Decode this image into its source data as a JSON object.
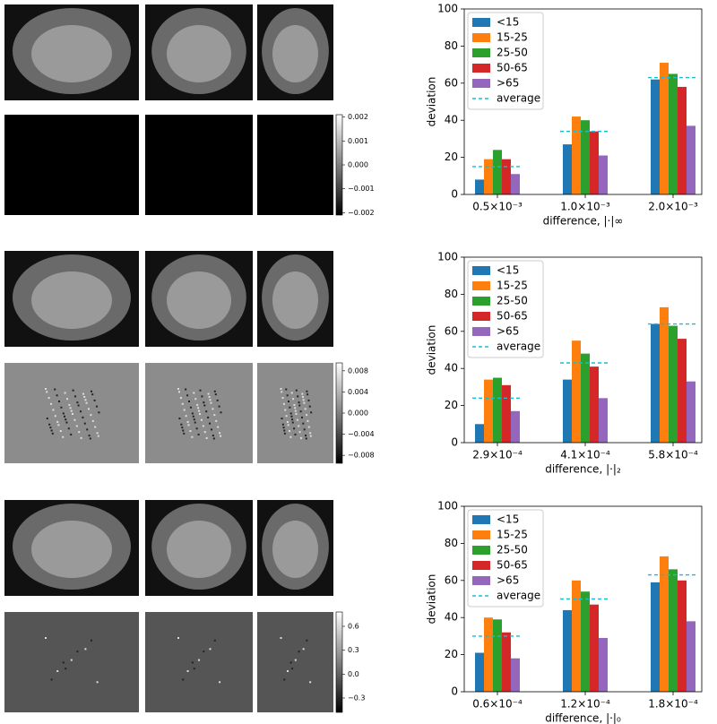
{
  "chart_data": [
    {
      "type": "bar",
      "ylabel": "deviation",
      "xlabel": "difference, |·|∞",
      "categories": [
        "0.5×10⁻³",
        "1.0×10⁻³",
        "2.0×10⁻³"
      ],
      "ylim": [
        0,
        100
      ],
      "yticks": [
        0,
        20,
        40,
        60,
        80,
        100
      ],
      "legend": "upper left",
      "series": [
        {
          "name": "<15",
          "color": "#1f77b4",
          "values": [
            8,
            27,
            62
          ]
        },
        {
          "name": "15-25",
          "color": "#ff7f0e",
          "values": [
            19,
            42,
            71
          ]
        },
        {
          "name": "25-50",
          "color": "#2ca02c",
          "values": [
            24,
            40,
            65
          ]
        },
        {
          "name": "50-65",
          "color": "#d62728",
          "values": [
            19,
            34,
            58
          ]
        },
        {
          "name": ">65",
          "color": "#9467bd",
          "values": [
            11,
            21,
            37
          ]
        },
        {
          "name": "average",
          "color": "#17becf",
          "linestyle": "dashed",
          "values": [
            15,
            34,
            63
          ]
        }
      ]
    },
    {
      "type": "bar",
      "ylabel": "deviation",
      "xlabel": "difference, |·|₂",
      "categories": [
        "2.9×10⁻⁴",
        "4.1×10⁻⁴",
        "5.8×10⁻⁴"
      ],
      "ylim": [
        0,
        100
      ],
      "yticks": [
        0,
        20,
        40,
        60,
        80,
        100
      ],
      "legend": "upper left",
      "series": [
        {
          "name": "<15",
          "color": "#1f77b4",
          "values": [
            10,
            34,
            64
          ]
        },
        {
          "name": "15-25",
          "color": "#ff7f0e",
          "values": [
            34,
            55,
            73
          ]
        },
        {
          "name": "25-50",
          "color": "#2ca02c",
          "values": [
            35,
            48,
            63
          ]
        },
        {
          "name": "50-65",
          "color": "#d62728",
          "values": [
            31,
            41,
            56
          ]
        },
        {
          "name": ">65",
          "color": "#9467bd",
          "values": [
            17,
            24,
            33
          ]
        },
        {
          "name": "average",
          "color": "#17becf",
          "linestyle": "dashed",
          "values": [
            24,
            43,
            64
          ]
        }
      ]
    },
    {
      "type": "bar",
      "ylabel": "deviation",
      "xlabel": "difference, |·|₀",
      "categories": [
        "0.6×10⁻⁴",
        "1.2×10⁻⁴",
        "1.8×10⁻⁴"
      ],
      "ylim": [
        0,
        100
      ],
      "yticks": [
        0,
        20,
        40,
        60,
        80,
        100
      ],
      "legend": "upper left",
      "series": [
        {
          "name": "<15",
          "color": "#1f77b4",
          "values": [
            21,
            44,
            59
          ]
        },
        {
          "name": "15-25",
          "color": "#ff7f0e",
          "values": [
            40,
            60,
            73
          ]
        },
        {
          "name": "25-50",
          "color": "#2ca02c",
          "values": [
            39,
            54,
            66
          ]
        },
        {
          "name": "50-65",
          "color": "#d62728",
          "values": [
            32,
            47,
            60
          ]
        },
        {
          "name": ">65",
          "color": "#9467bd",
          "values": [
            18,
            29,
            38
          ]
        },
        {
          "name": "average",
          "color": "#17becf",
          "linestyle": "dashed",
          "values": [
            30,
            50,
            63
          ]
        }
      ]
    }
  ],
  "colorbars": [
    {
      "ylim": [
        -0.0021,
        0.0021
      ],
      "ticks": [
        0.002,
        0.001,
        {
          "value": 0,
          "label": "0.000"
        },
        {
          "value": -0.001,
          "label": "−0.001"
        },
        {
          "value": -0.002,
          "label": "−0.002"
        }
      ]
    },
    {
      "ylim": [
        -0.0095,
        0.0095
      ],
      "ticks": [
        0.008,
        0.004,
        {
          "value": 0,
          "label": "0.000"
        },
        {
          "value": -0.004,
          "label": "−0.004"
        },
        {
          "value": -0.008,
          "label": "−0.008"
        }
      ]
    },
    {
      "ylim": [
        -0.48,
        0.78
      ],
      "ticks": [
        0.6,
        0.3,
        {
          "value": 0,
          "label": "0.0"
        },
        {
          "value": -0.3,
          "label": "−0.3"
        }
      ]
    }
  ]
}
